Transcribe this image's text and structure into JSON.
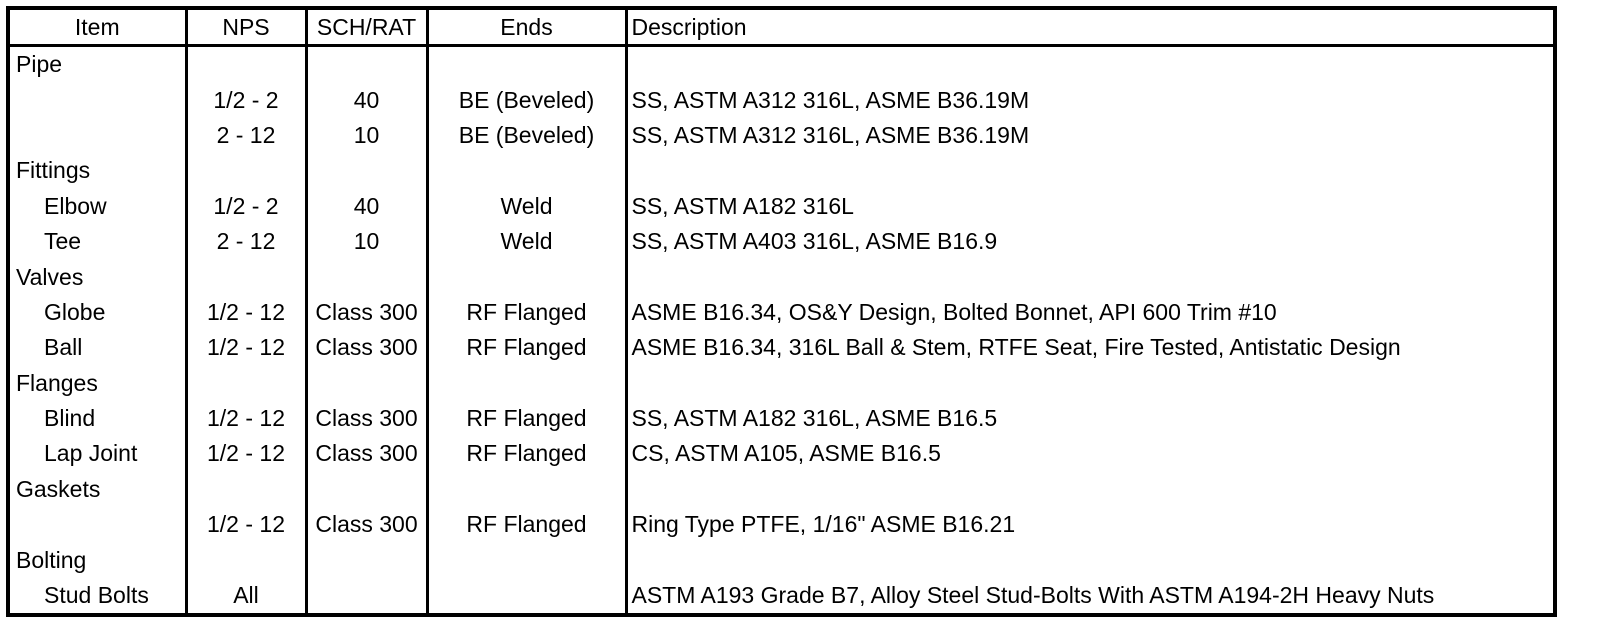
{
  "headers": {
    "item": "Item",
    "nps": "NPS",
    "sch": "SCH/RAT",
    "ends": "Ends",
    "description": "Description"
  },
  "rows": [
    {
      "item": "Pipe",
      "nps": "",
      "sch": "",
      "ends": "",
      "description": "",
      "indent": false
    },
    {
      "item": "",
      "nps": "1/2 - 2",
      "sch": "40",
      "ends": "BE (Beveled)",
      "description": "SS, ASTM A312 316L, ASME B36.19M",
      "indent": false
    },
    {
      "item": "",
      "nps": "2 - 12",
      "sch": "10",
      "ends": "BE (Beveled)",
      "description": "SS, ASTM A312 316L, ASME B36.19M",
      "indent": false
    },
    {
      "item": "Fittings",
      "nps": "",
      "sch": "",
      "ends": "",
      "description": "",
      "indent": false
    },
    {
      "item": "Elbow",
      "nps": "1/2 - 2",
      "sch": "40",
      "ends": "Weld",
      "description": "SS, ASTM A182 316L",
      "indent": true
    },
    {
      "item": "Tee",
      "nps": "2 - 12",
      "sch": "10",
      "ends": "Weld",
      "description": "SS, ASTM A403 316L, ASME B16.9",
      "indent": true
    },
    {
      "item": "Valves",
      "nps": "",
      "sch": "",
      "ends": "",
      "description": "",
      "indent": false
    },
    {
      "item": "Globe",
      "nps": "1/2 - 12",
      "sch": "Class 300",
      "ends": "RF Flanged",
      "description": "ASME B16.34, OS&Y Design, Bolted Bonnet, API 600 Trim #10",
      "indent": true
    },
    {
      "item": "Ball",
      "nps": "1/2 - 12",
      "sch": "Class 300",
      "ends": "RF Flanged",
      "description": "ASME B16.34, 316L Ball & Stem, RTFE Seat, Fire Tested, Antistatic Design",
      "indent": true
    },
    {
      "item": "Flanges",
      "nps": "",
      "sch": "",
      "ends": "",
      "description": "",
      "indent": false
    },
    {
      "item": "Blind",
      "nps": "1/2 - 12",
      "sch": "Class 300",
      "ends": "RF Flanged",
      "description": "SS, ASTM A182 316L, ASME B16.5",
      "indent": true
    },
    {
      "item": "Lap Joint",
      "nps": "1/2 - 12",
      "sch": "Class 300",
      "ends": "RF Flanged",
      "description": "CS, ASTM A105, ASME B16.5",
      "indent": true
    },
    {
      "item": "Gaskets",
      "nps": "",
      "sch": "",
      "ends": "",
      "description": "",
      "indent": false
    },
    {
      "item": "",
      "nps": "1/2 - 12",
      "sch": "Class 300",
      "ends": "RF Flanged",
      "description": "Ring Type PTFE, 1/16\" ASME B16.21",
      "indent": false
    },
    {
      "item": "Bolting",
      "nps": "",
      "sch": "",
      "ends": "",
      "description": "",
      "indent": false
    },
    {
      "item": "Stud Bolts",
      "nps": "All",
      "sch": "",
      "ends": "",
      "description": "ASTM A193 Grade B7, Alloy Steel Stud-Bolts With ASTM A194-2H Heavy Nuts",
      "indent": true
    }
  ]
}
